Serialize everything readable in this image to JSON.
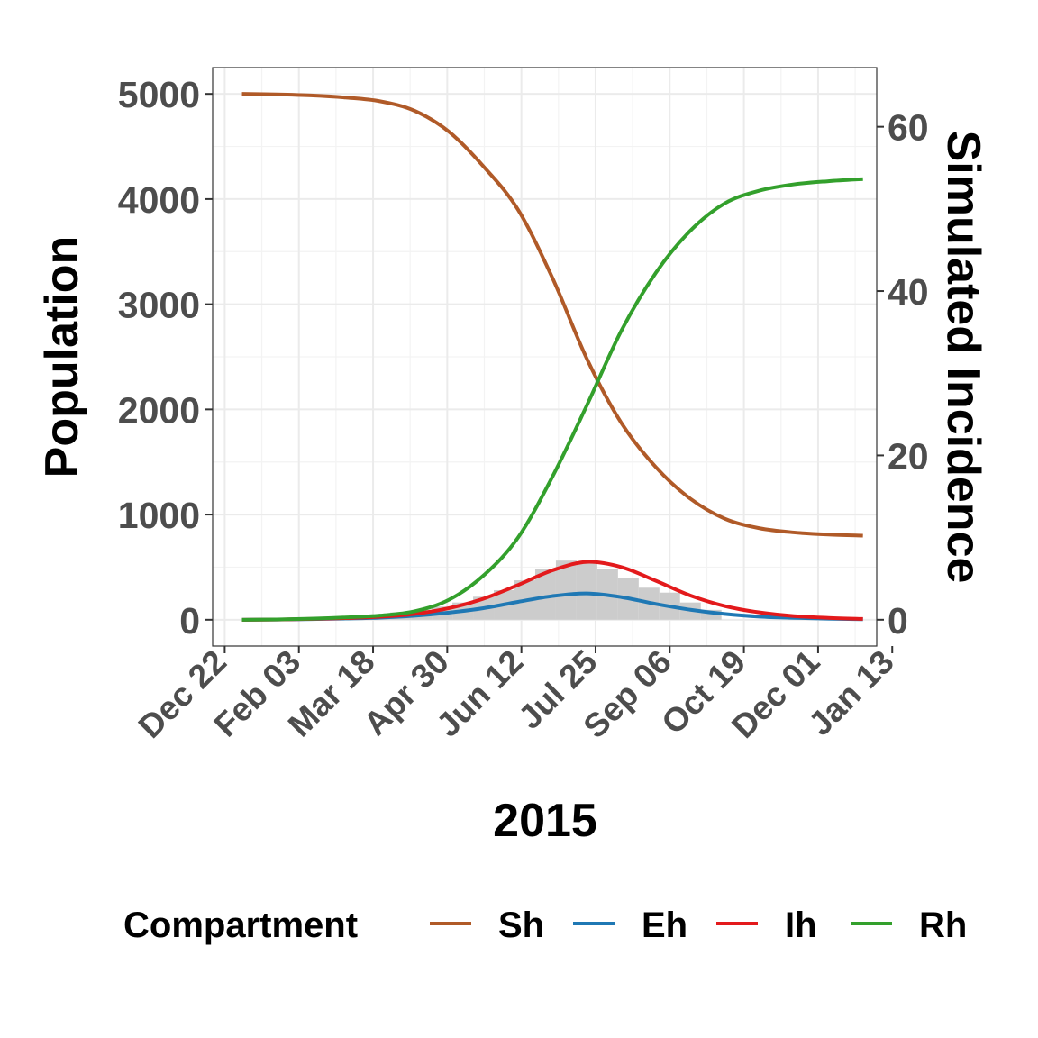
{
  "chart_data": {
    "type": "line",
    "xlabel": "2015",
    "ylabel": "Population",
    "y2label": "Simulated Incidence",
    "ylim": [
      -250,
      5250
    ],
    "y2lim": [
      -3.2,
      67.2
    ],
    "y_ticks": [
      0,
      1000,
      2000,
      3000,
      4000,
      5000
    ],
    "y2_ticks": [
      0,
      20,
      40,
      60
    ],
    "x_days_range": [
      -7,
      378
    ],
    "x_ticks": [
      {
        "label": "Dec 22",
        "day": 0
      },
      {
        "label": "Feb 03",
        "day": 43
      },
      {
        "label": "Mar 18",
        "day": 86
      },
      {
        "label": "Apr 30",
        "day": 129
      },
      {
        "label": "Jun 12",
        "day": 172
      },
      {
        "label": "Jul 25",
        "day": 215
      },
      {
        "label": "Sep 06",
        "day": 258
      },
      {
        "label": "Oct 19",
        "day": 301
      },
      {
        "label": "Dec 01",
        "day": 344
      },
      {
        "label": "Jan 13",
        "day": 387
      }
    ],
    "grid": true,
    "legend": {
      "title": "Compartment",
      "position": "bottom"
    },
    "x": [
      10,
      30,
      50,
      70,
      90,
      110,
      130,
      150,
      170,
      190,
      210,
      230,
      250,
      270,
      290,
      310,
      330,
      350,
      370
    ],
    "series": [
      {
        "name": "Sh",
        "color": "#b05a28",
        "values": [
          5000,
          4995,
          4985,
          4965,
          4930,
          4840,
          4640,
          4310,
          3900,
          3250,
          2480,
          1870,
          1450,
          1150,
          960,
          870,
          830,
          810,
          800
        ]
      },
      {
        "name": "Eh",
        "color": "#1f78b4",
        "values": [
          0,
          2,
          6,
          12,
          20,
          38,
          68,
          110,
          170,
          225,
          250,
          215,
          150,
          95,
          55,
          30,
          18,
          10,
          5
        ]
      },
      {
        "name": "Ih",
        "color": "#e31a1c",
        "values": [
          0,
          2,
          8,
          16,
          28,
          55,
          110,
          200,
          330,
          470,
          550,
          500,
          370,
          230,
          130,
          70,
          35,
          18,
          8
        ]
      },
      {
        "name": "Rh",
        "color": "#33a02c",
        "values": [
          0,
          3,
          10,
          22,
          40,
          80,
          190,
          420,
          780,
          1360,
          2040,
          2750,
          3300,
          3700,
          3960,
          4080,
          4140,
          4170,
          4190
        ]
      }
    ],
    "incidence_bars": {
      "color": "#cccccc",
      "bin_start_days": [
        60,
        72,
        84,
        96,
        108,
        120,
        132,
        144,
        156,
        168,
        180,
        192,
        204,
        216,
        228,
        240,
        252,
        264,
        276
      ],
      "values": [
        0.3,
        0.4,
        0.6,
        0.9,
        1.2,
        1.6,
        2.1,
        2.8,
        3.6,
        4.8,
        6.2,
        7.2,
        7.1,
        6.2,
        5.1,
        3.9,
        3.3,
        2.1,
        1.2
      ]
    }
  }
}
